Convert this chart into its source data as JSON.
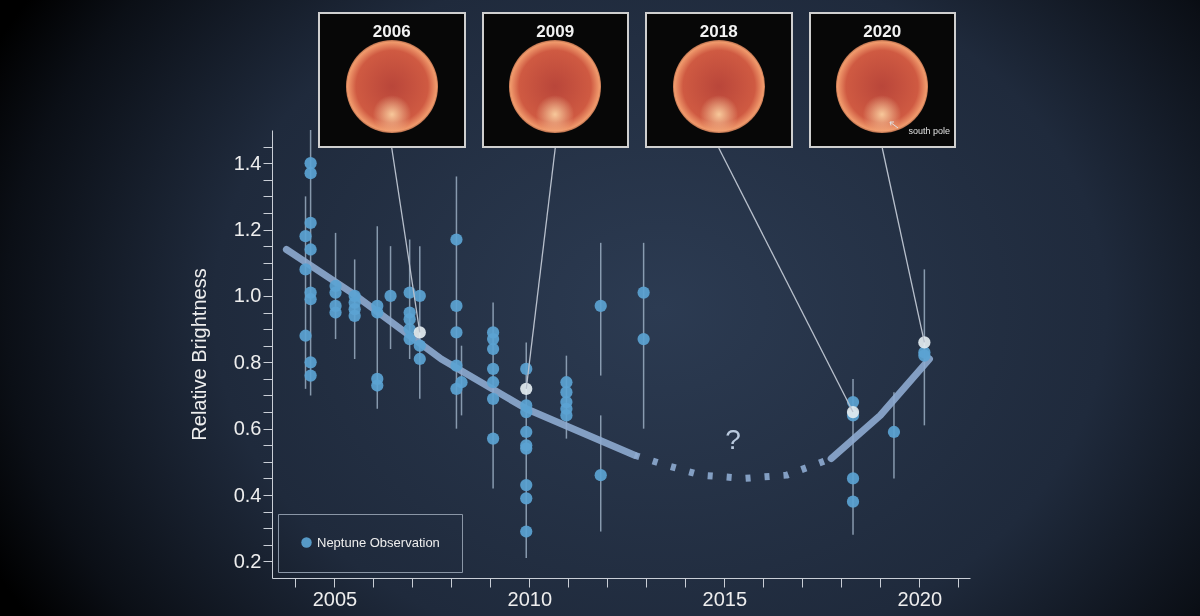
{
  "chart_data": {
    "type": "scatter",
    "ylabel": "Relative Brightness",
    "xlim": [
      2003.4,
      2021.3
    ],
    "ylim": [
      0.15,
      1.5
    ],
    "xticks": [
      {
        "value": 2004,
        "label": null
      },
      2005,
      {
        "value": 2006,
        "label": null
      },
      {
        "value": 2007,
        "label": null
      },
      {
        "value": 2008,
        "label": null
      },
      {
        "value": 2009,
        "label": null
      },
      2010,
      {
        "value": 2011,
        "label": null
      },
      {
        "value": 2012,
        "label": null
      },
      {
        "value": 2013,
        "label": null
      },
      {
        "value": 2014,
        "label": null
      },
      2015,
      {
        "value": 2016,
        "label": null
      },
      {
        "value": 2017,
        "label": null
      },
      {
        "value": 2018,
        "label": null
      },
      {
        "value": 2019,
        "label": null
      },
      2020,
      {
        "value": 2021,
        "label": null
      }
    ],
    "yticks": [
      0.2,
      {
        "value": 0.25,
        "label": null
      },
      {
        "value": 0.3,
        "label": null
      },
      {
        "value": 0.35,
        "label": null
      },
      0.4,
      {
        "value": 0.45,
        "label": null
      },
      {
        "value": 0.5,
        "label": null
      },
      {
        "value": 0.55,
        "label": null
      },
      0.6,
      {
        "value": 0.65,
        "label": null
      },
      {
        "value": 0.7,
        "label": null
      },
      {
        "value": 0.75,
        "label": null
      },
      0.8,
      {
        "value": 0.85,
        "label": null
      },
      {
        "value": 0.9,
        "label": null
      },
      {
        "value": 0.95,
        "label": null
      },
      {
        "value": 1,
        "label": "1.0"
      },
      {
        "value": 1.05,
        "label": null
      },
      {
        "value": 1.1,
        "label": null
      },
      {
        "value": 1.15,
        "label": null
      },
      1.2,
      {
        "value": 1.25,
        "label": null
      },
      {
        "value": 1.3,
        "label": null
      },
      {
        "value": 1.35,
        "label": null
      },
      1.4,
      {
        "value": 1.45,
        "label": null
      }
    ],
    "marker": "circle",
    "legend": "bottom left",
    "series": [
      {
        "name": "Neptune Observation",
        "color": "#5ba3d3",
        "x": [
          2004.26,
          2004.26,
          2004.26,
          2004.39,
          2004.39,
          2004.39,
          2004.39,
          2004.39,
          2004.39,
          2004.39,
          2004.39,
          2005.03,
          2005.03,
          2005.03,
          2005.03,
          2005.52,
          2005.52,
          2005.52,
          2005.52,
          2006.1,
          2006.1,
          2006.1,
          2006.1,
          2006.44,
          2006.93,
          2006.93,
          2006.93,
          2006.93,
          2006.93,
          2007.19,
          2007.19,
          2007.19,
          2008.13,
          2008.13,
          2008.13,
          2008.13,
          2008.13,
          2008.26,
          2009.07,
          2009.07,
          2009.07,
          2009.07,
          2009.07,
          2009.07,
          2009.07,
          2009.92,
          2009.92,
          2009.92,
          2009.92,
          2009.92,
          2009.92,
          2009.92,
          2009.92,
          2009.92,
          2010.95,
          2010.95,
          2010.95,
          2010.95,
          2010.95,
          2011.83,
          2011.83,
          2012.93,
          2012.93,
          2018.3,
          2018.3,
          2018.3,
          2018.3,
          2019.35,
          2020.13,
          2020.13
        ],
        "values": [
          1.18,
          1.08,
          0.88,
          1.4,
          1.37,
          1.22,
          1.14,
          1.01,
          0.99,
          0.8,
          0.76,
          1.03,
          1.01,
          0.97,
          0.95,
          1.0,
          0.98,
          0.96,
          0.94,
          0.97,
          0.95,
          0.75,
          0.73,
          1.0,
          1.01,
          0.95,
          0.93,
          0.9,
          0.87,
          1.0,
          0.85,
          0.81,
          1.17,
          0.97,
          0.89,
          0.79,
          0.72,
          0.74,
          0.89,
          0.87,
          0.84,
          0.78,
          0.74,
          0.69,
          0.57,
          0.78,
          0.67,
          0.65,
          0.59,
          0.55,
          0.54,
          0.43,
          0.39,
          0.29,
          0.74,
          0.71,
          0.68,
          0.66,
          0.64,
          0.97,
          0.46,
          1.01,
          0.87,
          0.68,
          0.64,
          0.45,
          0.38,
          0.59,
          0.83,
          0.82
        ],
        "errors": [
          null,
          [
            0.72,
            1.3
          ],
          null,
          [
            0.7,
            1.5
          ],
          null,
          null,
          null,
          null,
          null,
          null,
          null,
          null,
          [
            0.87,
            1.19
          ],
          null,
          null,
          null,
          [
            0.81,
            1.11
          ],
          null,
          null,
          null,
          [
            0.66,
            1.21
          ],
          null,
          null,
          [
            0.84,
            1.15
          ],
          null,
          null,
          [
            0.81,
            1.17
          ],
          null,
          null,
          null,
          [
            0.69,
            1.15
          ],
          null,
          null,
          [
            0.6,
            1.36
          ],
          null,
          null,
          null,
          [
            0.64,
            0.85
          ],
          null,
          null,
          null,
          [
            0.42,
            0.98
          ],
          null,
          null,
          null,
          null,
          null,
          null,
          [
            0.21,
            0.86
          ],
          null,
          null,
          null,
          null,
          null,
          null,
          null,
          [
            0.57,
            0.82
          ],
          null,
          null,
          [
            0.76,
            1.16
          ],
          [
            0.29,
            0.64
          ],
          null,
          [
            0.6,
            1.16
          ],
          null,
          null,
          [
            0.28,
            0.75
          ],
          null,
          [
            0.45,
            0.71
          ],
          [
            0.61,
            1.08
          ],
          null
        ]
      },
      {
        "color": "#e3ebf0",
        "x": [
          2007.19,
          2009.92,
          2018.3,
          2020.13
        ],
        "values": [
          0.89,
          0.72,
          0.65,
          0.86
        ]
      },
      {
        "color": "#8eabd0",
        "type": "line",
        "marker": "none",
        "line_style": "solid",
        "x": [
          2003.77,
          2005.44,
          2007.74,
          2009.92,
          2012.7
        ],
        "values": [
          1.14,
          1.01,
          0.81,
          0.66,
          0.52
        ]
      },
      {
        "color": "#8eabd0",
        "type": "line",
        "marker": "none",
        "line_style": "dotted",
        "x": [
          2012.7,
          2013.5,
          2014.4,
          2015.5,
          2016.6,
          2017.74
        ],
        "values": [
          0.52,
          0.49,
          0.46,
          0.45,
          0.46,
          0.51
        ]
      },
      {
        "color": "#8eabd0",
        "type": "line",
        "marker": "none",
        "line_style": "solid",
        "x": [
          2017.74,
          2019.0,
          2020.26
        ],
        "values": [
          0.51,
          0.64,
          0.81
        ]
      }
    ],
    "annotations": [
      "2006",
      "2009",
      "2018",
      "2020",
      "south pole",
      "?"
    ]
  }
}
